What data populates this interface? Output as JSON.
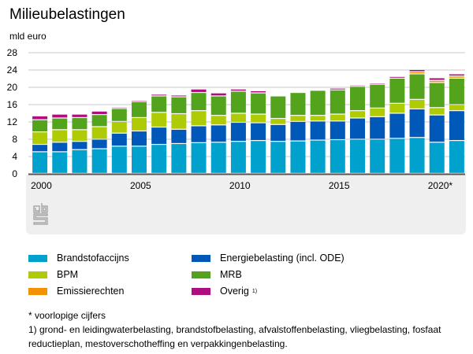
{
  "chart_data": {
    "type": "bar",
    "stacked": true,
    "title": "Milieubelastingen",
    "ylabel": "mld euro",
    "xlabel": "",
    "ylim": [
      0,
      28
    ],
    "yticks": [
      0,
      4,
      8,
      12,
      16,
      20,
      24,
      28
    ],
    "grid": true,
    "legend_position": "bottom",
    "categories": [
      "2000",
      "2001",
      "2002",
      "2003",
      "2004",
      "2005",
      "2006",
      "2007",
      "2008",
      "2009",
      "2010",
      "2011",
      "2012",
      "2013",
      "2014",
      "2015",
      "2016",
      "2017",
      "2018",
      "2019",
      "2020",
      "2021"
    ],
    "xtick_labels": {
      "2000": "2000",
      "2005": "2005",
      "2010": "2010",
      "2015": "2015",
      "2020": "2020*"
    },
    "series": [
      {
        "name": "Brandstofaccijns",
        "color": "#00a1cd",
        "values": [
          5.0,
          5.0,
          5.5,
          5.7,
          6.3,
          6.3,
          6.7,
          6.9,
          7.1,
          7.2,
          7.4,
          7.6,
          7.4,
          7.5,
          7.7,
          7.8,
          7.9,
          7.9,
          8.1,
          8.3,
          7.2,
          7.6
        ]
      },
      {
        "name": "Energiebelasting (incl. ODE)",
        "color": "#0058b8",
        "values": [
          1.7,
          2.2,
          1.9,
          2.2,
          3.0,
          3.5,
          4.0,
          3.3,
          3.9,
          4.0,
          4.4,
          4.1,
          3.9,
          4.5,
          4.4,
          4.3,
          4.9,
          5.2,
          5.8,
          6.6,
          6.3,
          6.9
        ]
      },
      {
        "name": "BPM",
        "color": "#afcb05",
        "values": [
          2.9,
          2.9,
          2.7,
          2.9,
          2.7,
          3.1,
          3.4,
          3.6,
          3.5,
          2.2,
          2.1,
          2.0,
          1.4,
          1.4,
          1.3,
          1.6,
          1.7,
          2.0,
          2.3,
          2.2,
          1.7,
          1.4
        ]
      },
      {
        "name": "MRB",
        "color": "#53a31d",
        "values": [
          2.8,
          2.7,
          2.8,
          2.8,
          3.0,
          3.7,
          3.8,
          3.9,
          4.2,
          4.5,
          5.1,
          4.9,
          5.2,
          5.3,
          5.8,
          5.6,
          5.6,
          5.5,
          5.8,
          5.9,
          5.8,
          6.1
        ]
      },
      {
        "name": "Emissierechten",
        "color": "#f39200",
        "values": [
          0,
          0,
          0,
          0,
          0,
          0,
          0,
          0,
          0,
          0,
          0,
          0,
          0,
          0,
          0,
          0,
          0,
          0,
          0,
          0.5,
          0.5,
          0.5
        ]
      },
      {
        "name": "Overig",
        "color": "#af0e80",
        "values": [
          0.9,
          0.9,
          0.8,
          0.8,
          0.3,
          0.3,
          0.4,
          0.4,
          0.8,
          0.7,
          0.5,
          0.5,
          0.2,
          0.2,
          0.2,
          0.4,
          0.3,
          0.3,
          0.4,
          0.5,
          0.6,
          0.5
        ]
      }
    ]
  },
  "legend": [
    {
      "label": "Brandstofaccijns",
      "color": "#00a1cd"
    },
    {
      "label": "Energiebelasting (incl. ODE)",
      "color": "#0058b8"
    },
    {
      "label": "BPM",
      "color": "#afcb05"
    },
    {
      "label": "MRB",
      "color": "#53a31d"
    },
    {
      "label": "Emissierechten",
      "color": "#f39200"
    },
    {
      "label": "Overig",
      "color": "#af0e80",
      "sup": "1)"
    }
  ],
  "notes": {
    "provisional": "* voorlopige cijfers",
    "footnote": "1) grond- en leidingwaterbelasting, brandstofbelasting, afvalstoffenbelasting, vliegbelasting, fosfaat reductieplan, mestoverschotheffing en verpakkingenbelasting."
  },
  "logo": "cbs-logo-icon"
}
